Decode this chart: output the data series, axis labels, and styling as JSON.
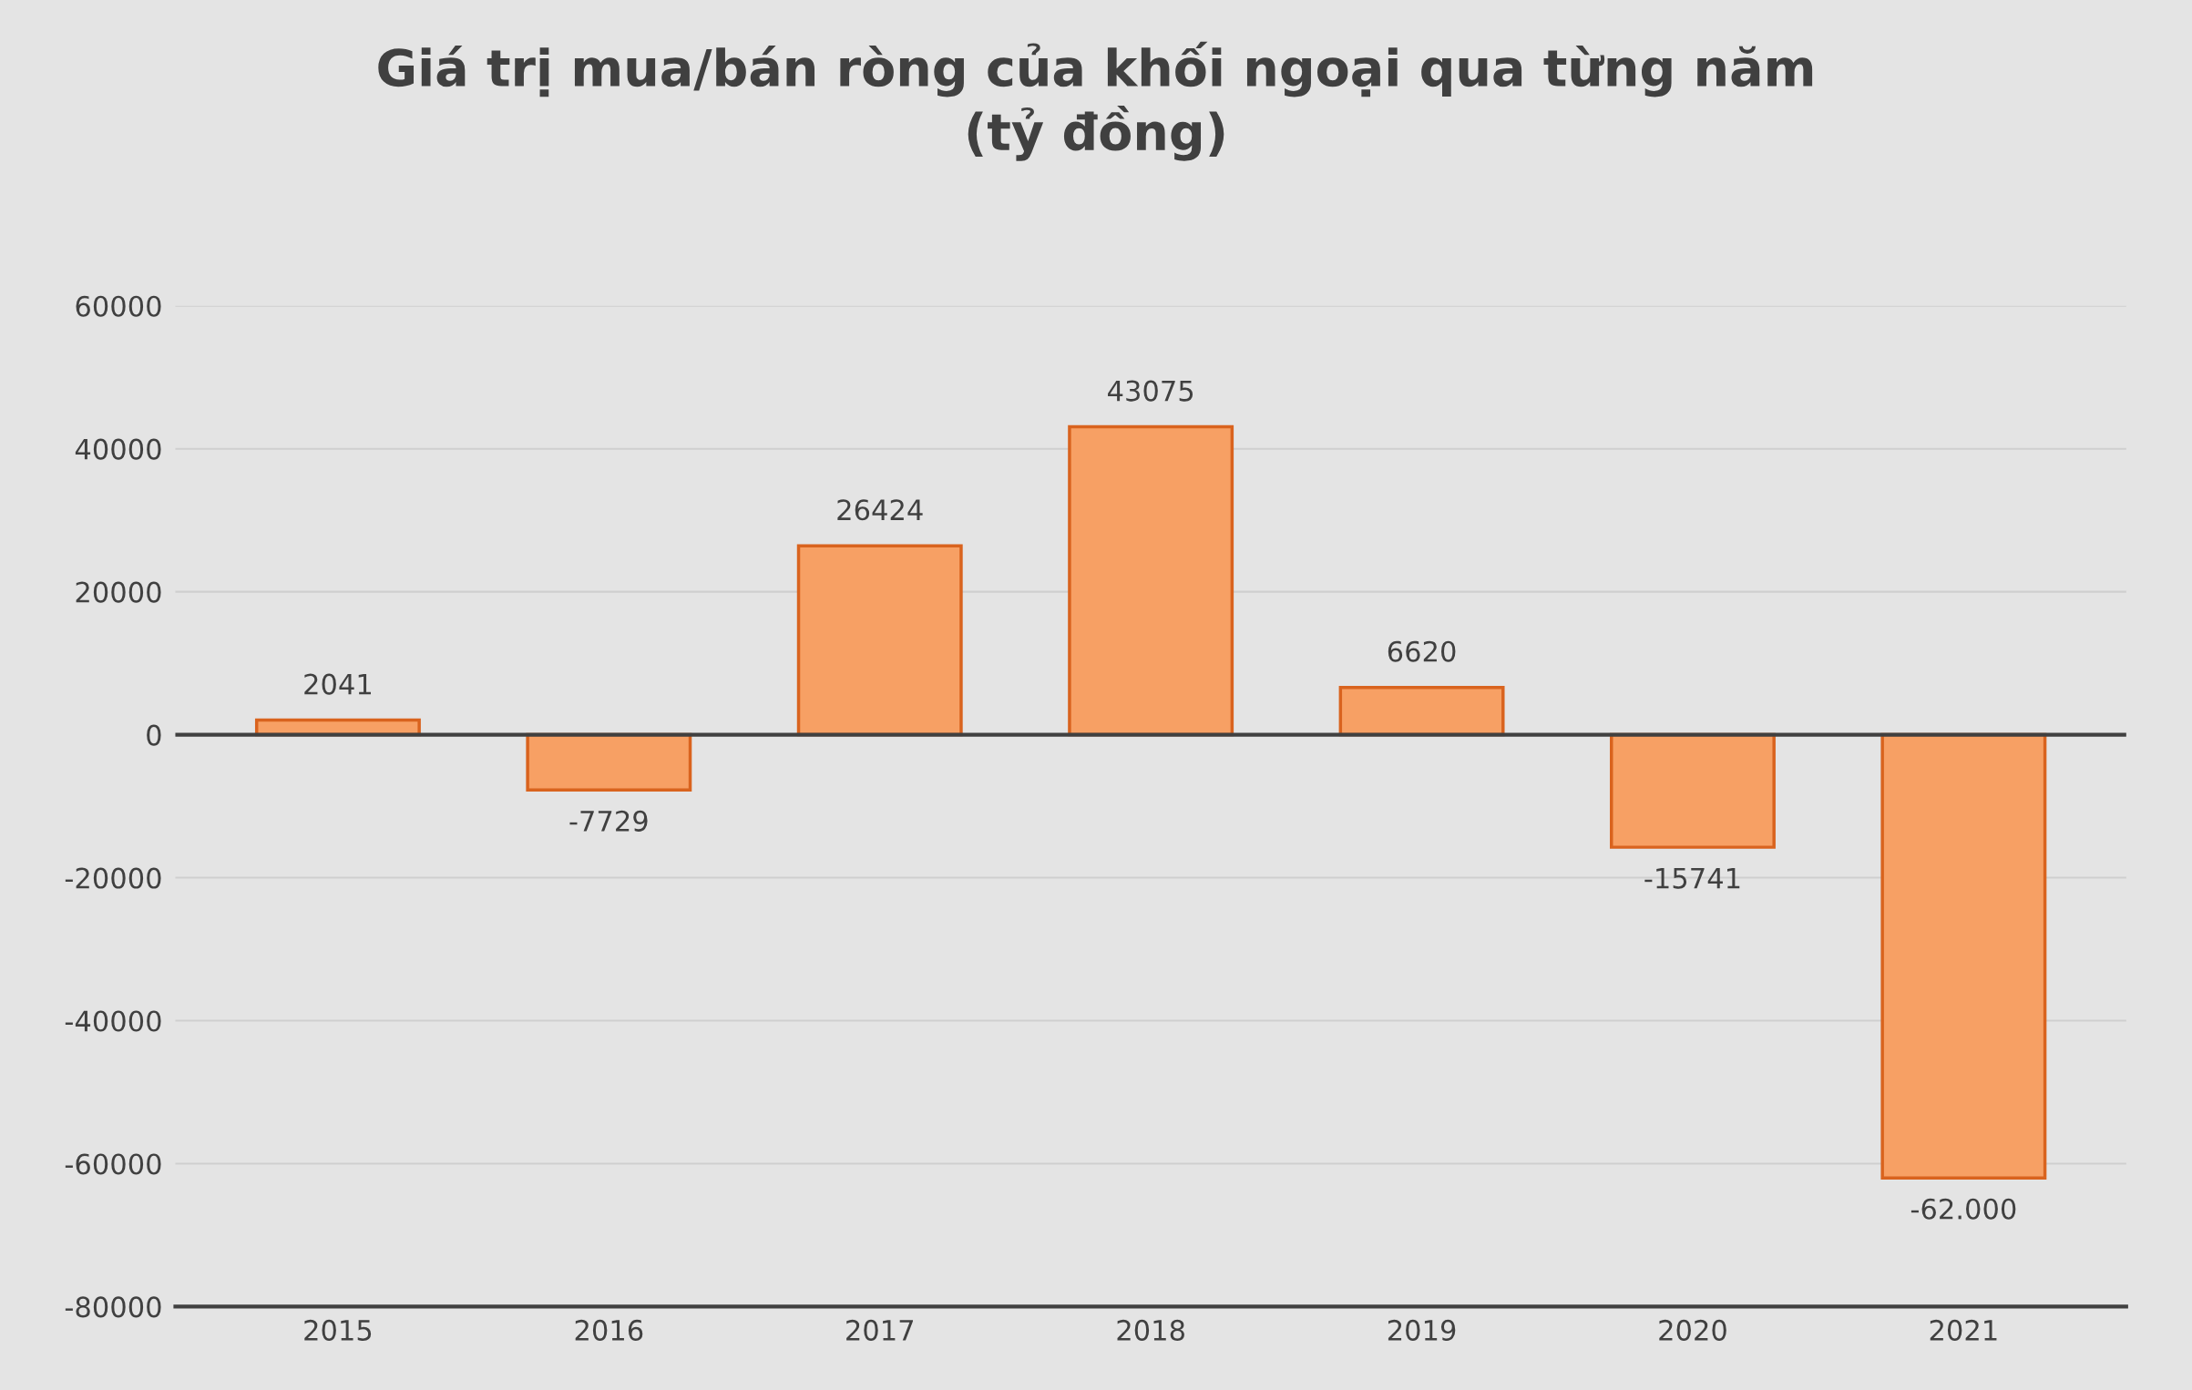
{
  "chart_data": {
    "type": "bar",
    "title": "Giá trị mua/bán ròng của khối ngoại qua từng năm\n(tỷ đồng)",
    "categories": [
      "2015",
      "2016",
      "2017",
      "2018",
      "2019",
      "2020",
      "2021"
    ],
    "values": [
      2041,
      -7729,
      26424,
      43075,
      6620,
      -15741,
      -62000
    ],
    "value_labels": [
      "2041",
      "-7729",
      "26424",
      "43075",
      "6620",
      "-15741",
      "-62.000"
    ],
    "color": "#f7a064",
    "ylim": [
      -80000,
      60000
    ],
    "yticks": [
      -80000,
      -60000,
      -40000,
      -20000,
      0,
      20000,
      40000,
      60000
    ],
    "grid": "y",
    "ref_lines": [
      {
        "axis": "y",
        "value": 0,
        "color": "#404040"
      }
    ]
  }
}
